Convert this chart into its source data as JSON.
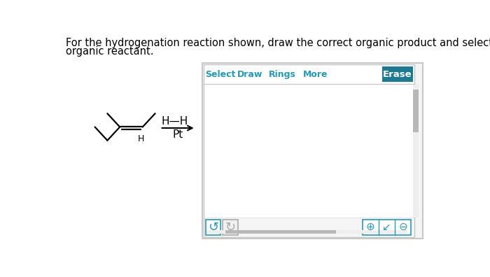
{
  "bg_color": "#ffffff",
  "title_line1": "For the hydrogenation reaction shown, draw the correct organic product and select the correct IUPAC name for the",
  "title_line2": "organic reactant.",
  "title_fontsize": 10.5,
  "toolbar_items": [
    "Select",
    "Draw",
    "Rings",
    "More"
  ],
  "toolbar_color": "#2899b4",
  "erase_bg": "#1e7a91",
  "erase_text": "Erase",
  "hh_label": "H—H",
  "pt_label": "Pt",
  "panel_border": "#cccccc",
  "panel_inner_border": "#dddddd",
  "scrollbar_color": "#c0c0c0",
  "btn_border": "#2899b4",
  "btn_bg_active": "#ffffff",
  "btn_bg_inactive": "#f0f0f0",
  "molecule_lw": 1.6,
  "mol_color": "#000000"
}
